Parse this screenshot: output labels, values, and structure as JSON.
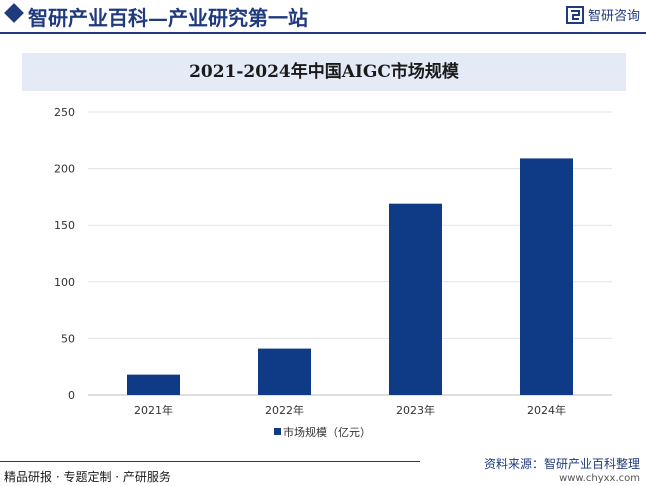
{
  "header": {
    "site_title": "智研产业百科—产业研究第一站",
    "brand_name": "智研咨询"
  },
  "chart_data": {
    "type": "bar",
    "title": "2021-2024年中国AIGC市场规模",
    "categories": [
      "2021年",
      "2022年",
      "2023年",
      "2024年"
    ],
    "series": [
      {
        "name": "市场规模（亿元）",
        "values": [
          18,
          41,
          169,
          209
        ]
      }
    ],
    "ylim": [
      0,
      250
    ],
    "yticks": [
      0,
      50,
      100,
      150,
      200,
      250
    ],
    "xlabel": "",
    "ylabel": "",
    "grid": true,
    "legend_position": "bottom",
    "bar_color": "#0f3a86"
  },
  "footer": {
    "left_text": "精品研报 · 专题定制 · 产研服务",
    "source": "资料来源：智研产业百科整理",
    "url": "www.chyxx.com"
  }
}
